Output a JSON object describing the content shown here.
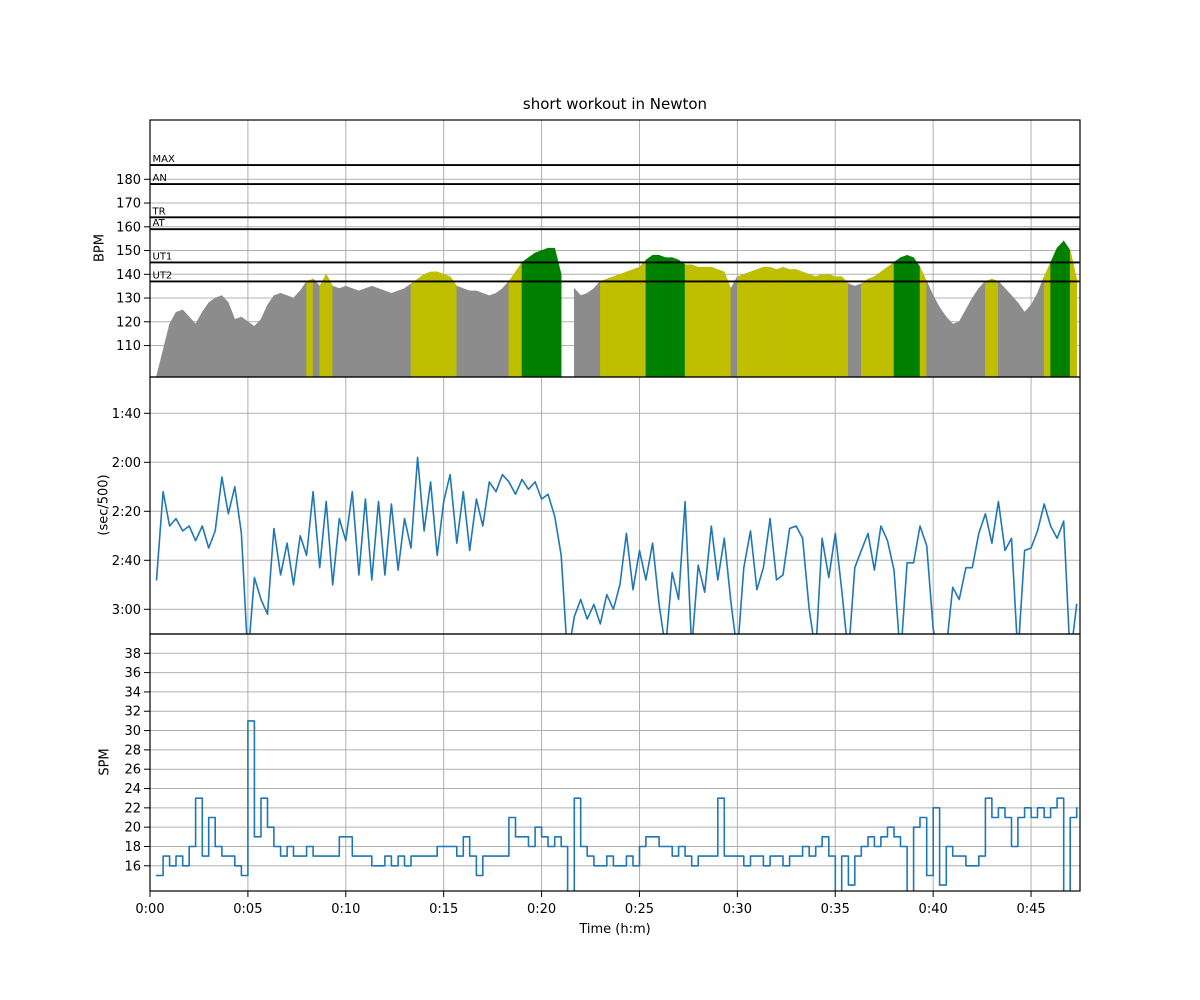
{
  "figure": {
    "title": "short workout in Newton",
    "xlabel": "Time (h:m)"
  },
  "colors": {
    "hr_rest": "#8c8c8c",
    "hr_ut2": "#bfbf00",
    "hr_ut1": "#008000",
    "line": "#1f77b4",
    "grid": "#b0b0b0",
    "zone_line": "#000000",
    "frame": "#000000",
    "background": "#ffffff"
  },
  "x_axis": {
    "label": "Time (h:m)",
    "xlim_minutes": [
      0,
      47.5
    ],
    "tick_minutes": [
      0,
      5,
      10,
      15,
      20,
      25,
      30,
      35,
      40,
      45
    ],
    "tick_labels": [
      "0:00",
      "0:05",
      "0:10",
      "0:15",
      "0:20",
      "0:25",
      "0:30",
      "0:35",
      "0:40",
      "0:45"
    ]
  },
  "time_min": [
    0.0,
    0.33,
    0.67,
    1.0,
    1.33,
    1.67,
    2.0,
    2.33,
    2.67,
    3.0,
    3.33,
    3.67,
    4.0,
    4.33,
    4.67,
    5.0,
    5.33,
    5.67,
    6.0,
    6.33,
    6.67,
    7.0,
    7.33,
    7.67,
    8.0,
    8.33,
    8.67,
    9.0,
    9.33,
    9.67,
    10.0,
    10.33,
    10.67,
    11.0,
    11.33,
    11.67,
    12.0,
    12.33,
    12.67,
    13.0,
    13.33,
    13.67,
    14.0,
    14.33,
    14.67,
    15.0,
    15.33,
    15.67,
    16.0,
    16.33,
    16.67,
    17.0,
    17.33,
    17.67,
    18.0,
    18.33,
    18.67,
    19.0,
    19.33,
    19.67,
    20.0,
    20.33,
    20.67,
    21.0,
    21.33,
    21.67,
    22.0,
    22.33,
    22.67,
    23.0,
    23.33,
    23.67,
    24.0,
    24.33,
    24.67,
    25.0,
    25.33,
    25.67,
    26.0,
    26.33,
    26.67,
    27.0,
    27.33,
    27.67,
    28.0,
    28.33,
    28.67,
    29.0,
    29.33,
    29.67,
    30.0,
    30.33,
    30.67,
    31.0,
    31.33,
    31.67,
    32.0,
    32.33,
    32.67,
    33.0,
    33.33,
    33.67,
    34.0,
    34.33,
    34.67,
    35.0,
    35.33,
    35.67,
    36.0,
    36.33,
    36.67,
    37.0,
    37.33,
    37.67,
    38.0,
    38.33,
    38.67,
    39.0,
    39.33,
    39.67,
    40.0,
    40.33,
    40.67,
    41.0,
    41.33,
    41.67,
    42.0,
    42.33,
    42.67,
    43.0,
    43.33,
    43.67,
    44.0,
    44.33,
    44.67,
    45.0,
    45.33,
    45.67,
    46.0,
    46.33,
    46.67,
    47.0,
    47.33
  ],
  "chart_data": [
    {
      "type": "area",
      "ylabel": "BPM",
      "ylim": [
        96,
        205
      ],
      "yticks": [
        110,
        120,
        130,
        140,
        150,
        160,
        170,
        180
      ],
      "zones": [
        {
          "label": "MAX",
          "bpm": 186
        },
        {
          "label": "AN",
          "bpm": 178
        },
        {
          "label": "TR",
          "bpm": 164
        },
        {
          "label": "AT",
          "bpm": 159
        },
        {
          "label": "UT1",
          "bpm": 145
        },
        {
          "label": "UT2",
          "bpm": 137
        }
      ],
      "series": [
        {
          "name": "heart_rate_bpm",
          "values": [
            null,
            97,
            108,
            119,
            124,
            125,
            122,
            119,
            124,
            128,
            130,
            131,
            128,
            121,
            122,
            120,
            118,
            121,
            127,
            131,
            132,
            131,
            130,
            133,
            137,
            138,
            135,
            140,
            135,
            134,
            135,
            134,
            133,
            134,
            135,
            134,
            133,
            132,
            133,
            134,
            136,
            138,
            140,
            141,
            141,
            140,
            139,
            135,
            134,
            133,
            133,
            132,
            131,
            132,
            134,
            137,
            141,
            145,
            147,
            149,
            150,
            151,
            151,
            140,
            null,
            134,
            131,
            132,
            134,
            137,
            138,
            139,
            140,
            141,
            142,
            143,
            146,
            148,
            148,
            147,
            147,
            146,
            144,
            144,
            143,
            143,
            143,
            142,
            141,
            134,
            139,
            140,
            141,
            142,
            143,
            143,
            142,
            143,
            142,
            142,
            141,
            140,
            139,
            140,
            140,
            139,
            139,
            136,
            135,
            136,
            138,
            139,
            141,
            143,
            145,
            147,
            148,
            147,
            143,
            137,
            131,
            126,
            122,
            119,
            120,
            125,
            130,
            134,
            137,
            138,
            137,
            134,
            131,
            128,
            124,
            127,
            132,
            139,
            145,
            151,
            154,
            150,
            138
          ]
        }
      ]
    },
    {
      "type": "line",
      "ylabel": "(sec/500)",
      "ylim_sec_top_to_bottom": [
        85,
        190
      ],
      "yticks_sec": [
        100,
        120,
        140,
        160,
        180
      ],
      "ytick_labels": [
        "1:40",
        "2:00",
        "2:20",
        "2:40",
        "3:00"
      ],
      "series": [
        {
          "name": "pace_sec_per_500m",
          "values": [
            null,
            168,
            132,
            146,
            143,
            148,
            146,
            152,
            146,
            155,
            148,
            126,
            141,
            130,
            149,
            200,
            167,
            176,
            182,
            147,
            166,
            153,
            170,
            150,
            158,
            132,
            163,
            136,
            170,
            143,
            152,
            132,
            166,
            135,
            168,
            136,
            166,
            137,
            164,
            143,
            155,
            118,
            148,
            128,
            158,
            136,
            125,
            153,
            132,
            156,
            135,
            146,
            128,
            132,
            125,
            128,
            133,
            127,
            131,
            128,
            135,
            133,
            142,
            158,
            200,
            183,
            176,
            184,
            178,
            186,
            174,
            180,
            170,
            149,
            172,
            156,
            168,
            153,
            178,
            196,
            165,
            176,
            136,
            196,
            162,
            173,
            146,
            168,
            151,
            177,
            198,
            163,
            148,
            172,
            163,
            143,
            168,
            166,
            147,
            146,
            151,
            180,
            198,
            151,
            167,
            149,
            172,
            199,
            163,
            156,
            149,
            164,
            146,
            152,
            164,
            200,
            161,
            161,
            146,
            154,
            188,
            200,
            196,
            171,
            176,
            163,
            163,
            149,
            141,
            153,
            136,
            156,
            151,
            199,
            156,
            155,
            148,
            137,
            146,
            151,
            144,
            200,
            178
          ]
        }
      ]
    },
    {
      "type": "line",
      "ylabel": "SPM",
      "ylim": [
        13.4,
        39.8
      ],
      "yticks": [
        16,
        18,
        20,
        22,
        24,
        26,
        28,
        30,
        32,
        34,
        36,
        38
      ],
      "series": [
        {
          "name": "strokes_per_minute",
          "values": [
            null,
            15,
            17,
            16,
            17,
            16,
            18,
            23,
            17,
            21,
            18,
            17,
            17,
            16,
            15,
            31,
            19,
            23,
            20,
            18,
            17,
            18,
            17,
            17,
            18,
            17,
            17,
            17,
            17,
            19,
            19,
            17,
            17,
            17,
            16,
            16,
            17,
            16,
            17,
            16,
            17,
            17,
            17,
            17,
            18,
            18,
            18,
            17,
            19,
            17,
            15,
            17,
            17,
            17,
            17,
            21,
            19,
            19,
            18,
            20,
            19,
            18,
            19,
            18,
            13,
            23,
            18,
            17,
            16,
            16,
            17,
            16,
            16,
            17,
            16,
            18,
            19,
            19,
            18,
            18,
            17,
            18,
            17,
            16,
            17,
            17,
            17,
            23,
            17,
            17,
            17,
            16,
            17,
            17,
            16,
            17,
            17,
            16,
            17,
            17,
            18,
            17,
            18,
            19,
            17,
            13,
            17,
            14,
            17,
            18,
            19,
            18,
            19,
            20,
            19,
            18,
            13,
            20,
            21,
            15,
            22,
            14,
            18,
            17,
            17,
            16,
            16,
            17,
            23,
            21,
            22,
            21,
            18,
            21,
            22,
            21,
            22,
            21,
            22,
            23,
            13,
            21,
            22
          ]
        }
      ]
    }
  ]
}
